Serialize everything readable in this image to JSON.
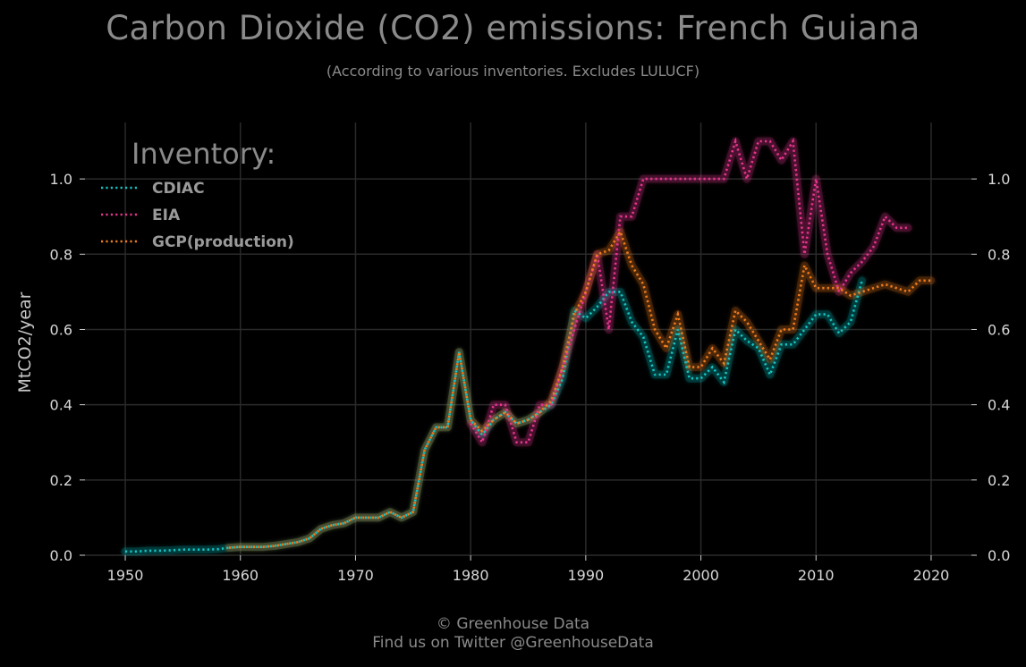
{
  "header": {
    "title": "Carbon Dioxide (CO2) emissions: French Guiana",
    "subtitle": "(According to various inventories. Excludes LULUCF)"
  },
  "footer": {
    "line1": "© Greenhouse Data",
    "line2": "Find us on Twitter @GreenhouseData"
  },
  "legend": {
    "title": "Inventory:"
  },
  "colors": {
    "background": "#000000",
    "grid": "#2a2a2a",
    "CDIAC": "#17c3c3",
    "EIA": "#e8358f",
    "GCP(production)": "#f07c1c"
  },
  "chart_data": {
    "type": "line",
    "title": "Carbon Dioxide (CO2) emissions: French Guiana",
    "subtitle": "(According to various inventories. Excludes LULUCF)",
    "xlabel": "",
    "ylabel": "MtCO2/year",
    "xlim": [
      1946.5,
      2023.5
    ],
    "ylim": [
      0,
      1.15
    ],
    "xticks": [
      1950,
      1960,
      1970,
      1980,
      1990,
      2000,
      2010,
      2020
    ],
    "yticks": [
      0.0,
      0.2,
      0.4,
      0.6,
      0.8,
      1.0
    ],
    "ytick_labels": [
      "0.0",
      "0.2",
      "0.4",
      "0.6",
      "0.8",
      "1.0"
    ],
    "grid": true,
    "legend_position": "top-left",
    "line_style": "dotted",
    "series": [
      {
        "name": "CDIAC",
        "x": [
          1950,
          1951,
          1952,
          1953,
          1954,
          1955,
          1956,
          1957,
          1958,
          1959,
          1960,
          1961,
          1962,
          1963,
          1964,
          1965,
          1966,
          1967,
          1968,
          1969,
          1970,
          1971,
          1972,
          1973,
          1974,
          1975,
          1976,
          1977,
          1978,
          1979,
          1980,
          1981,
          1982,
          1983,
          1984,
          1985,
          1986,
          1987,
          1988,
          1989,
          1990,
          1991,
          1992,
          1993,
          1994,
          1995,
          1996,
          1997,
          1998,
          1999,
          2000,
          2001,
          2002,
          2003,
          2004,
          2005,
          2006,
          2007,
          2008,
          2009,
          2010,
          2011,
          2012,
          2013,
          2014
        ],
        "values": [
          0.01,
          0.01,
          0.012,
          0.012,
          0.013,
          0.015,
          0.015,
          0.015,
          0.016,
          0.02,
          0.022,
          0.022,
          0.022,
          0.025,
          0.03,
          0.035,
          0.045,
          0.07,
          0.08,
          0.085,
          0.1,
          0.1,
          0.1,
          0.115,
          0.1,
          0.115,
          0.28,
          0.34,
          0.34,
          0.54,
          0.36,
          0.32,
          0.36,
          0.38,
          0.35,
          0.36,
          0.38,
          0.4,
          0.47,
          0.65,
          0.63,
          0.66,
          0.7,
          0.7,
          0.62,
          0.58,
          0.48,
          0.48,
          0.6,
          0.47,
          0.47,
          0.5,
          0.46,
          0.6,
          0.57,
          0.55,
          0.48,
          0.56,
          0.56,
          0.6,
          0.64,
          0.64,
          0.59,
          0.62,
          0.73
        ]
      },
      {
        "name": "EIA",
        "x": [
          1980,
          1981,
          1982,
          1983,
          1984,
          1985,
          1986,
          1987,
          1988,
          1989,
          1990,
          1991,
          1992,
          1993,
          1994,
          1995,
          1996,
          1997,
          1998,
          1999,
          2000,
          2001,
          2002,
          2003,
          2004,
          2005,
          2006,
          2007,
          2008,
          2009,
          2010,
          2011,
          2012,
          2013,
          2014,
          2015,
          2016,
          2017,
          2018
        ],
        "values": [
          0.35,
          0.3,
          0.4,
          0.4,
          0.3,
          0.3,
          0.4,
          0.4,
          0.5,
          0.6,
          0.7,
          0.8,
          0.6,
          0.9,
          0.9,
          1.0,
          1.0,
          1.0,
          1.0,
          1.0,
          1.0,
          1.0,
          1.0,
          1.1,
          1.0,
          1.1,
          1.1,
          1.05,
          1.1,
          0.8,
          1.0,
          0.8,
          0.7,
          0.75,
          0.78,
          0.82,
          0.9,
          0.87,
          0.87
        ]
      },
      {
        "name": "GCP(production)",
        "x": [
          1959,
          1960,
          1961,
          1962,
          1963,
          1964,
          1965,
          1966,
          1967,
          1968,
          1969,
          1970,
          1971,
          1972,
          1973,
          1974,
          1975,
          1976,
          1977,
          1978,
          1979,
          1980,
          1981,
          1982,
          1983,
          1984,
          1985,
          1986,
          1987,
          1988,
          1989,
          1990,
          1991,
          1992,
          1993,
          1994,
          1995,
          1996,
          1997,
          1998,
          1999,
          2000,
          2001,
          2002,
          2003,
          2004,
          2005,
          2006,
          2007,
          2008,
          2009,
          2010,
          2011,
          2012,
          2013,
          2014,
          2015,
          2016,
          2017,
          2018,
          2019,
          2020
        ],
        "values": [
          0.02,
          0.022,
          0.022,
          0.022,
          0.025,
          0.03,
          0.035,
          0.045,
          0.07,
          0.08,
          0.085,
          0.1,
          0.1,
          0.1,
          0.115,
          0.1,
          0.115,
          0.28,
          0.34,
          0.34,
          0.54,
          0.36,
          0.33,
          0.36,
          0.38,
          0.35,
          0.36,
          0.38,
          0.41,
          0.5,
          0.64,
          0.7,
          0.8,
          0.81,
          0.86,
          0.77,
          0.72,
          0.6,
          0.55,
          0.64,
          0.5,
          0.5,
          0.55,
          0.51,
          0.65,
          0.62,
          0.57,
          0.52,
          0.6,
          0.6,
          0.77,
          0.71,
          0.71,
          0.71,
          0.69,
          0.7,
          0.71,
          0.72,
          0.71,
          0.7,
          0.73,
          0.73
        ]
      }
    ]
  }
}
